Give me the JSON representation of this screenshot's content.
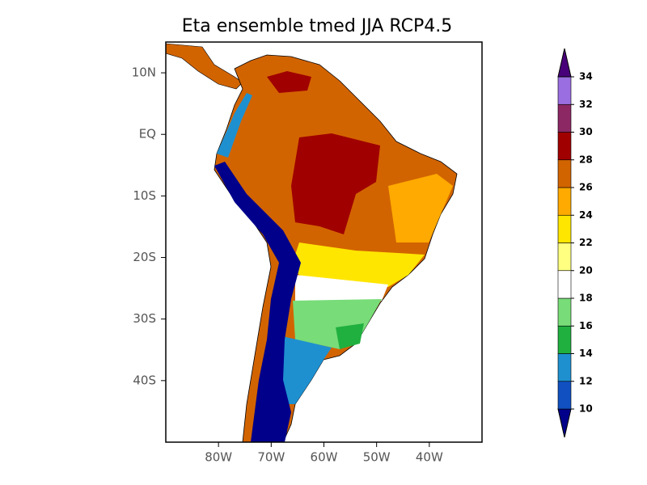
{
  "title": "Eta ensemble tmed JJA RCP4.5",
  "map": {
    "xlim": [
      -90,
      -30
    ],
    "ylim": [
      -50,
      15
    ],
    "xticks": [
      {
        "value": -80,
        "label": "80W"
      },
      {
        "value": -70,
        "label": "70W"
      },
      {
        "value": -60,
        "label": "60W"
      },
      {
        "value": -50,
        "label": "50W"
      },
      {
        "value": -40,
        "label": "40W"
      }
    ],
    "yticks": [
      {
        "value": 10,
        "label": "10N"
      },
      {
        "value": 0,
        "label": "EQ"
      },
      {
        "value": -10,
        "label": "10S"
      },
      {
        "value": -20,
        "label": "20S"
      },
      {
        "value": -30,
        "label": "30S"
      },
      {
        "value": -40,
        "label": "40S"
      }
    ]
  },
  "colorbar": {
    "levels": [
      10,
      12,
      14,
      16,
      18,
      20,
      22,
      24,
      26,
      28,
      30,
      32,
      34
    ],
    "colors": [
      "#00008b",
      "#1050c0",
      "#1e90d0",
      "#20b040",
      "#78dc78",
      "#ffffff",
      "#ffff80",
      "#ffe600",
      "#ffaa00",
      "#d26400",
      "#a00000",
      "#8c2864",
      "#9a6ee0",
      "#48007a"
    ]
  }
}
